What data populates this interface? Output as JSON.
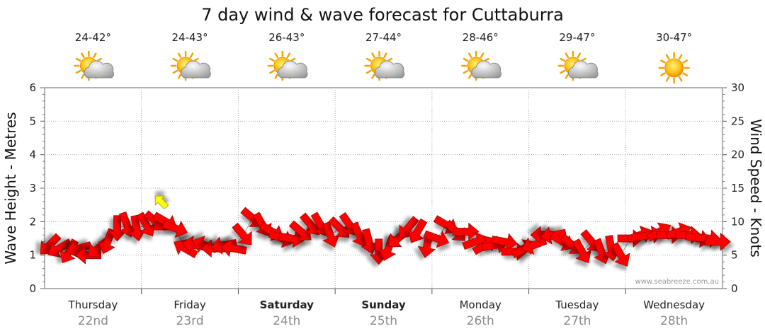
{
  "chart_data": {
    "type": "line",
    "title": "7 day wind & wave forecast for Cuttaburra",
    "ylabel_left": "Wave Height - Metres",
    "ylabel_right": "Wind Speed - Knots",
    "ylim_left": [
      0,
      6
    ],
    "ylim_right": [
      0,
      30
    ],
    "yticks_left": [
      "0",
      "1",
      "2",
      "3",
      "4",
      "5",
      "6"
    ],
    "yticks_right": [
      "0",
      "5",
      "10",
      "15",
      "20",
      "25",
      "30"
    ],
    "grid": true,
    "watermark": "www.seabreeze.com.au",
    "days": [
      {
        "day": "Thursday",
        "date": "22nd",
        "bold": false,
        "temp": "24-42°",
        "icon": "partly-cloudy-icon"
      },
      {
        "day": "Friday",
        "date": "23rd",
        "bold": false,
        "temp": "24-43°",
        "icon": "partly-cloudy-icon"
      },
      {
        "day": "Saturday",
        "date": "24th",
        "bold": true,
        "temp": "26-43°",
        "icon": "partly-cloudy-icon"
      },
      {
        "day": "Sunday",
        "date": "25th",
        "bold": true,
        "temp": "27-44°",
        "icon": "partly-cloudy-icon"
      },
      {
        "day": "Monday",
        "date": "26th",
        "bold": false,
        "temp": "28-46°",
        "icon": "partly-cloudy-icon"
      },
      {
        "day": "Tuesday",
        "date": "27th",
        "bold": false,
        "temp": "29-47°",
        "icon": "partly-cloudy-icon"
      },
      {
        "day": "Wednesday",
        "date": "28th",
        "bold": false,
        "temp": "30-47°",
        "icon": "sunny-icon"
      }
    ],
    "series": [
      {
        "name": "Wind",
        "color": "#ff0000",
        "x_days": [
          0.0,
          0.1,
          0.2,
          0.3,
          0.4,
          0.5,
          0.6,
          0.7,
          0.8,
          0.9,
          1.0,
          1.1,
          1.2,
          1.3,
          1.4,
          1.5,
          1.6,
          1.7,
          1.8,
          1.9,
          2.0,
          2.1,
          2.2,
          2.3,
          2.4,
          2.5,
          2.6,
          2.7,
          2.8,
          2.9,
          3.0,
          3.1,
          3.2,
          3.3,
          3.4,
          3.5,
          3.6,
          3.7,
          3.8,
          3.9,
          4.0,
          4.1,
          4.2,
          4.3,
          4.4,
          4.5,
          4.6,
          4.7,
          4.8,
          4.9,
          5.0,
          5.1,
          5.2,
          5.3,
          5.4,
          5.5,
          5.6,
          5.7,
          5.8,
          5.9,
          6.0,
          6.1,
          6.2,
          6.3,
          6.4,
          6.5,
          6.6,
          6.7,
          6.8,
          6.9
        ],
        "knots": [
          6.5,
          6.0,
          5.5,
          6.0,
          5.0,
          6.0,
          7.0,
          9.0,
          9.5,
          9.0,
          9.5,
          10.0,
          10.0,
          9.0,
          6.0,
          6.5,
          6.5,
          6.0,
          6.5,
          6.0,
          8.0,
          10.5,
          9.5,
          8.5,
          7.5,
          7.5,
          8.5,
          9.5,
          9.5,
          8.0,
          9.0,
          9.5,
          8.0,
          7.0,
          5.5,
          6.0,
          7.5,
          9.0,
          8.5,
          6.5,
          7.5,
          9.5,
          8.5,
          8.5,
          7.0,
          6.5,
          6.5,
          7.0,
          5.5,
          6.0,
          6.5,
          8.0,
          8.0,
          7.0,
          6.5,
          5.5,
          7.0,
          5.5,
          6.0,
          5.0,
          7.5,
          8.0,
          8.0,
          8.5,
          8.0,
          8.5,
          8.0,
          7.5,
          7.5,
          7.0
        ],
        "direction_deg": [
          225,
          240,
          210,
          255,
          270,
          230,
          200,
          180,
          160,
          170,
          150,
          130,
          120,
          110,
          300,
          280,
          290,
          270,
          260,
          280,
          140,
          130,
          150,
          120,
          110,
          100,
          130,
          140,
          150,
          160,
          135,
          145,
          155,
          165,
          180,
          200,
          230,
          220,
          210,
          190,
          110,
          120,
          135,
          90,
          70,
          60,
          80,
          100,
          90,
          60,
          250,
          270,
          260,
          120,
          130,
          150,
          140,
          160,
          170,
          150,
          90,
          70,
          80,
          60,
          90,
          70,
          90,
          100,
          95,
          90
        ]
      },
      {
        "name": "Waves",
        "color": "#ffff00",
        "x_days": [
          1.2
        ],
        "metres": [
          2.6
        ],
        "direction_deg": [
          315
        ]
      }
    ]
  }
}
